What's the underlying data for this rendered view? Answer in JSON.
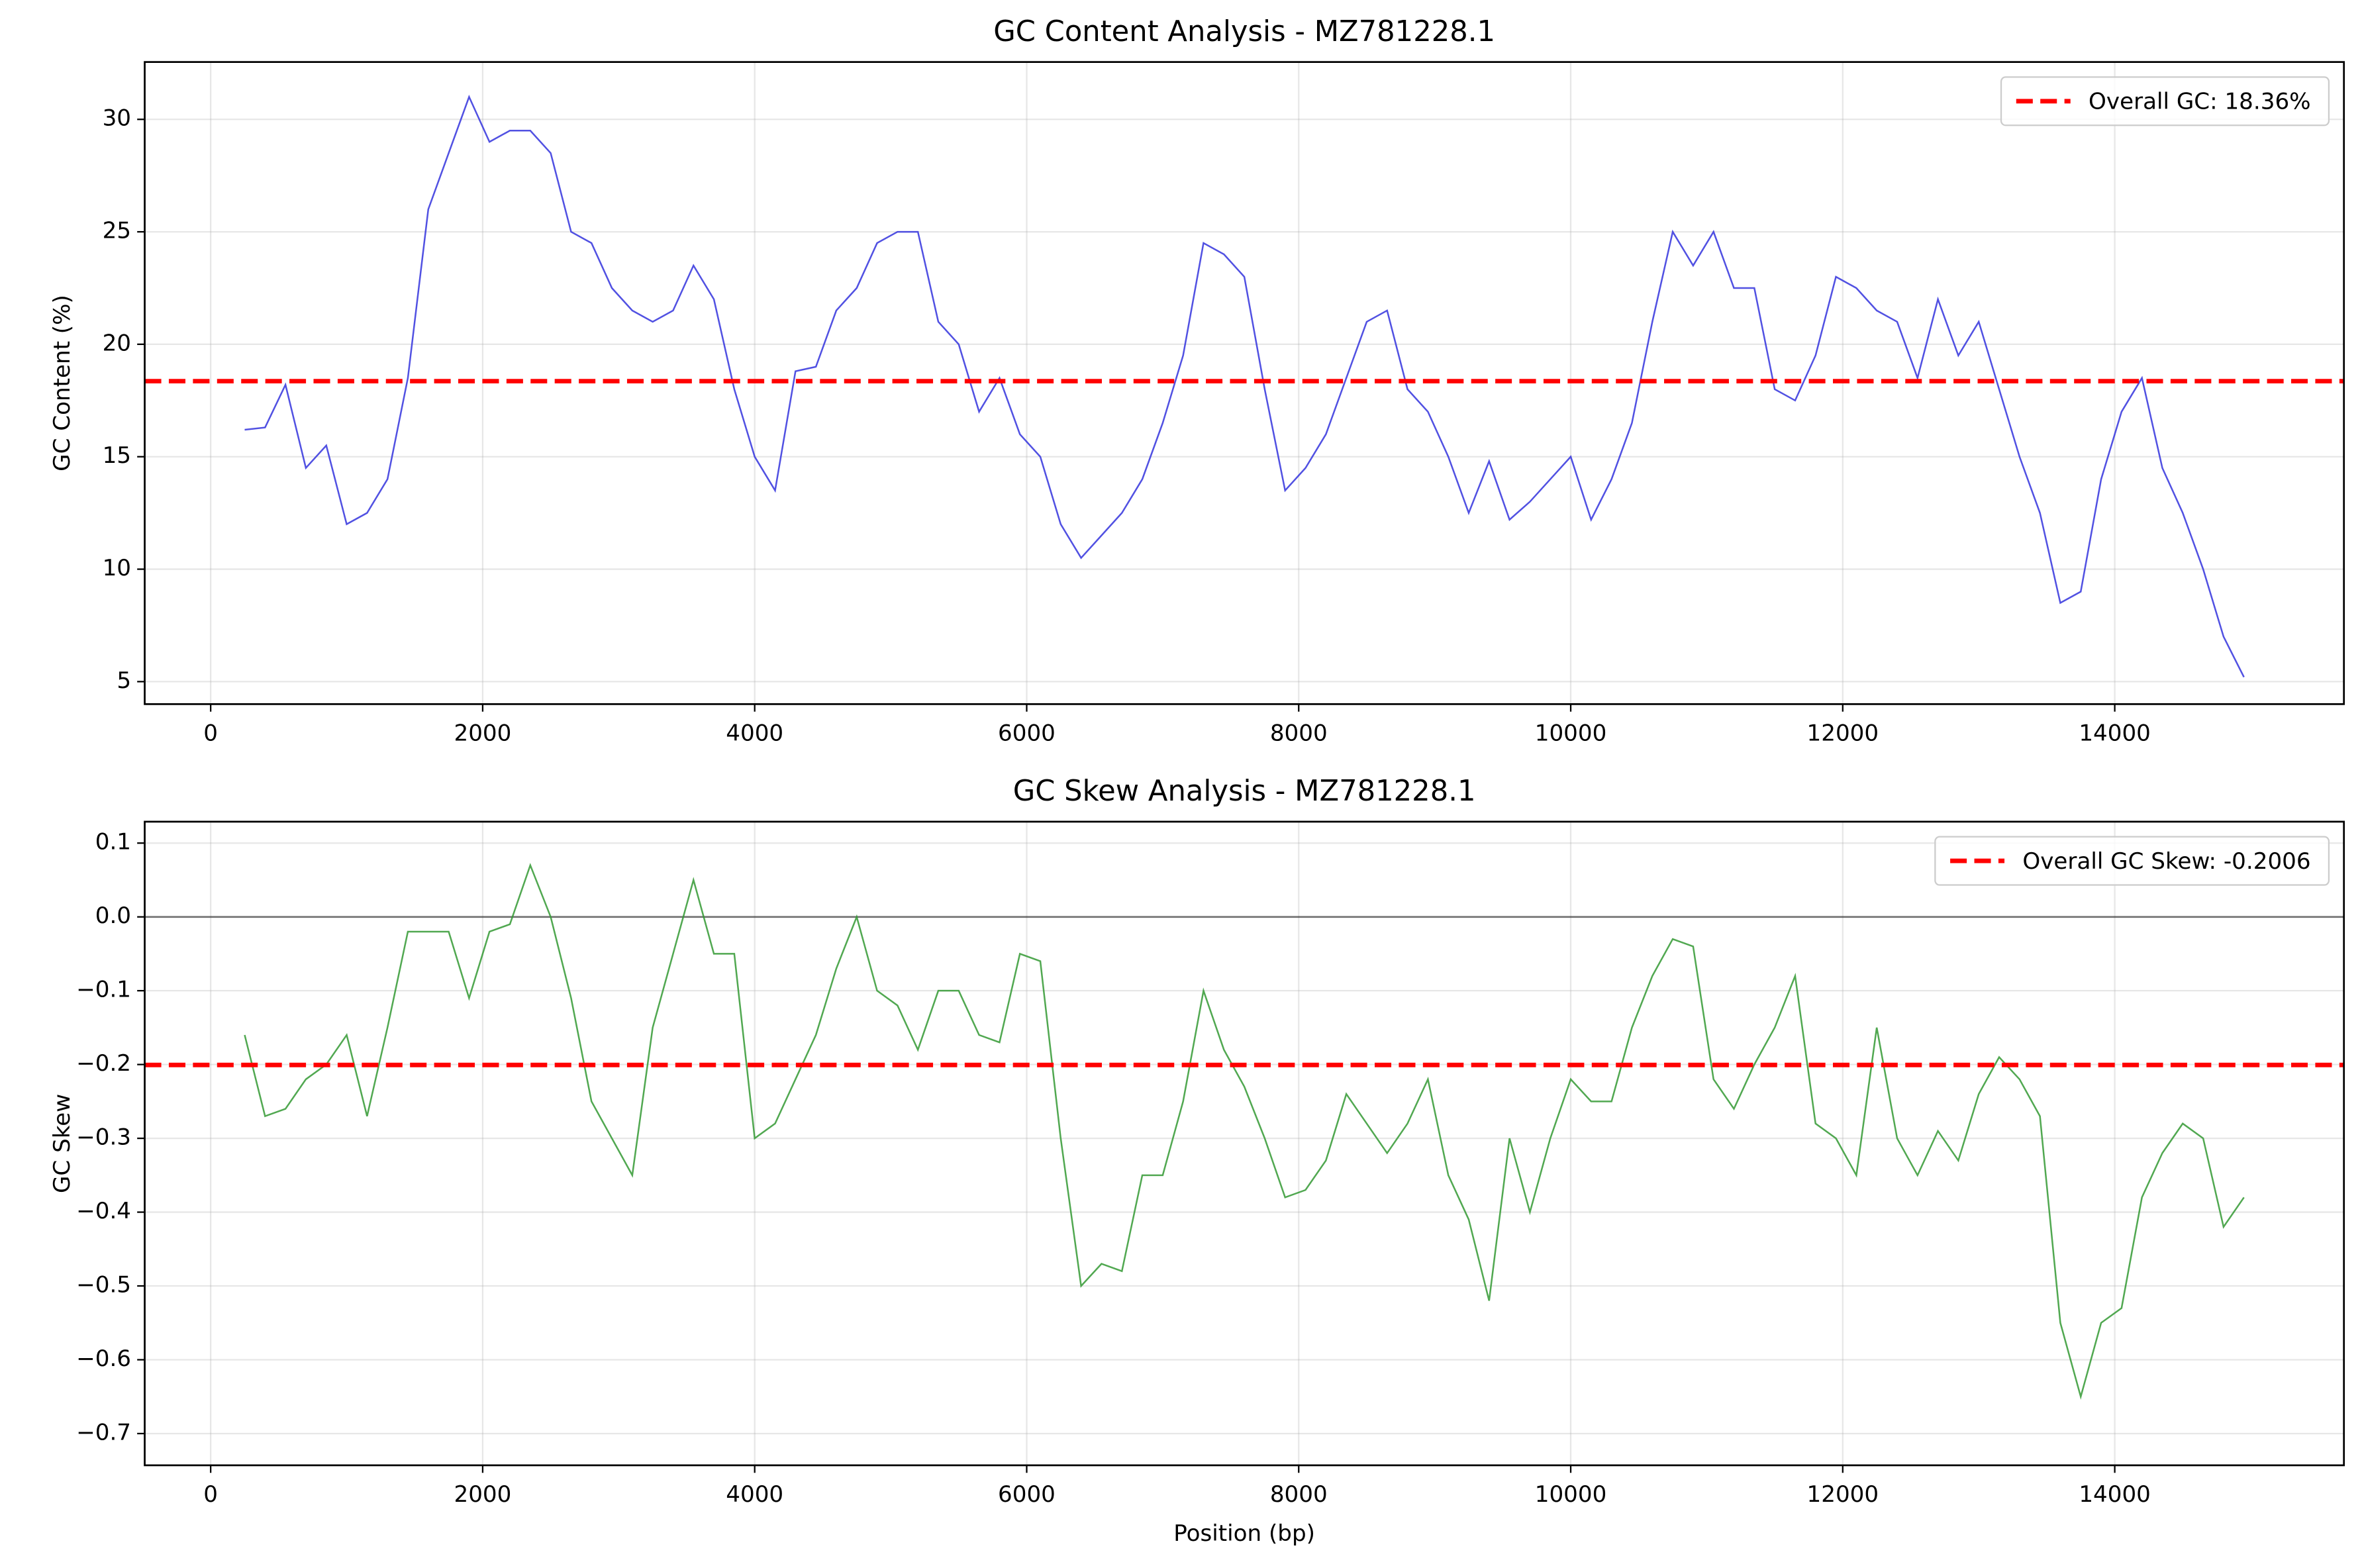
{
  "chart_data": [
    {
      "type": "line",
      "title": "GC Content Analysis - MZ781228.1",
      "ylabel": "GC Content (%)",
      "x": [
        250,
        400,
        550,
        700,
        850,
        1000,
        1150,
        1300,
        1450,
        1600,
        1750,
        1900,
        2050,
        2200,
        2350,
        2500,
        2650,
        2800,
        2950,
        3100,
        3250,
        3400,
        3550,
        3700,
        3850,
        4000,
        4150,
        4300,
        4450,
        4600,
        4750,
        4900,
        5050,
        5200,
        5350,
        5500,
        5650,
        5800,
        5950,
        6100,
        6250,
        6400,
        6550,
        6700,
        6850,
        7000,
        7150,
        7300,
        7450,
        7600,
        7750,
        7900,
        8050,
        8200,
        8350,
        8500,
        8650,
        8800,
        8950,
        9100,
        9250,
        9400,
        9550,
        9700,
        9850,
        10000,
        10150,
        10300,
        10450,
        10600,
        10750,
        10900,
        11050,
        11200,
        11350,
        11500,
        11650,
        11800,
        11950,
        12100,
        12250,
        12400,
        12550,
        12700,
        12850,
        13000,
        13150,
        13300,
        13450,
        13600,
        13750,
        13900,
        14050,
        14200,
        14350,
        14500,
        14650,
        14800,
        14950
      ],
      "values": [
        16.2,
        16.3,
        18.2,
        14.5,
        15.5,
        12,
        12.5,
        14,
        18.5,
        26,
        28.5,
        31,
        29,
        29.5,
        29.5,
        28.5,
        25,
        24.5,
        22.5,
        21.5,
        21,
        21.5,
        23.5,
        22,
        18,
        15,
        13.5,
        18.8,
        19,
        21.5,
        22.5,
        24.5,
        25,
        25,
        21,
        20,
        17,
        18.5,
        16,
        15,
        12,
        10.5,
        11.5,
        12.5,
        14,
        16.5,
        19.5,
        24.5,
        24,
        23,
        18,
        13.5,
        14.5,
        16,
        18.5,
        21,
        21.5,
        18,
        17,
        15,
        12.5,
        14.8,
        12.2,
        13,
        14,
        15,
        12.2,
        14,
        16.5,
        21,
        25,
        23.5,
        25,
        22.5,
        22.5,
        18,
        17.5,
        19.5,
        23,
        22.5,
        21.5,
        21,
        18.5,
        22,
        19.5,
        21,
        18,
        15,
        12.5,
        8.5,
        9,
        14,
        17,
        18.5,
        14.5,
        12.5,
        10,
        7,
        5.2
      ],
      "color": "#3333dd",
      "hline": {
        "value": 18.36,
        "label": "Overall GC: 18.36%",
        "color": "#ff0000"
      },
      "xlim": [
        -485,
        15685
      ],
      "xticks": [
        0,
        2000,
        4000,
        6000,
        8000,
        10000,
        12000,
        14000
      ],
      "ylim": [
        4.0,
        32.55
      ],
      "yticks": [
        5,
        10,
        15,
        20,
        25,
        30
      ],
      "grid": true,
      "legend": "upper right"
    },
    {
      "type": "line",
      "title": "GC Skew Analysis - MZ781228.1",
      "ylabel": "GC Skew",
      "xlabel": "Position (bp)",
      "x": [
        250,
        400,
        550,
        700,
        850,
        1000,
        1150,
        1300,
        1450,
        1600,
        1750,
        1900,
        2050,
        2200,
        2350,
        2500,
        2650,
        2800,
        2950,
        3100,
        3250,
        3400,
        3550,
        3700,
        3850,
        4000,
        4150,
        4300,
        4450,
        4600,
        4750,
        4900,
        5050,
        5200,
        5350,
        5500,
        5650,
        5800,
        5950,
        6100,
        6250,
        6400,
        6550,
        6700,
        6850,
        7000,
        7150,
        7300,
        7450,
        7600,
        7750,
        7900,
        8050,
        8200,
        8350,
        8500,
        8650,
        8800,
        8950,
        9100,
        9250,
        9400,
        9550,
        9700,
        9850,
        10000,
        10150,
        10300,
        10450,
        10600,
        10750,
        10900,
        11050,
        11200,
        11350,
        11500,
        11650,
        11800,
        11950,
        12100,
        12250,
        12400,
        12550,
        12700,
        12850,
        13000,
        13150,
        13300,
        13450,
        13600,
        13750,
        13900,
        14050,
        14200,
        14350,
        14500,
        14650,
        14800,
        14950
      ],
      "values": [
        -0.16,
        -0.27,
        -0.26,
        -0.22,
        -0.2,
        -0.16,
        -0.27,
        -0.15,
        -0.02,
        -0.02,
        -0.02,
        -0.11,
        -0.02,
        -0.01,
        0.07,
        0,
        -0.11,
        -0.25,
        -0.3,
        -0.35,
        -0.15,
        -0.05,
        0.05,
        -0.05,
        -0.05,
        -0.3,
        -0.28,
        -0.22,
        -0.16,
        -0.07,
        0,
        -0.1,
        -0.12,
        -0.18,
        -0.1,
        -0.1,
        -0.16,
        -0.17,
        -0.05,
        -0.06,
        -0.3,
        -0.5,
        -0.47,
        -0.48,
        -0.35,
        -0.35,
        -0.25,
        -0.1,
        -0.18,
        -0.23,
        -0.3,
        -0.38,
        -0.37,
        -0.33,
        -0.24,
        -0.28,
        -0.32,
        -0.28,
        -0.22,
        -0.35,
        -0.41,
        -0.52,
        -0.3,
        -0.4,
        -0.3,
        -0.22,
        -0.25,
        -0.25,
        -0.15,
        -0.08,
        -0.03,
        -0.04,
        -0.22,
        -0.26,
        -0.2,
        -0.15,
        -0.08,
        -0.28,
        -0.3,
        -0.35,
        -0.15,
        -0.3,
        -0.35,
        -0.29,
        -0.33,
        -0.24,
        -0.19,
        -0.22,
        -0.27,
        -0.55,
        -0.65,
        -0.55,
        -0.53,
        -0.38,
        -0.32,
        -0.28,
        -0.3,
        -0.42,
        -0.38
      ],
      "color": "#339933",
      "hline": {
        "value": -0.2006,
        "label": "Overall GC Skew: -0.2006",
        "color": "#ff0000"
      },
      "baseline": 0,
      "xlim": [
        -485,
        15685
      ],
      "xticks": [
        0,
        2000,
        4000,
        6000,
        8000,
        10000,
        12000,
        14000
      ],
      "ylim": [
        -0.743,
        0.129
      ],
      "yticks": [
        {
          "value": 0.1,
          "label": "0.1"
        },
        {
          "value": 0,
          "label": "0.0"
        },
        {
          "value": -0.1,
          "label": "−0.1"
        },
        {
          "value": -0.2,
          "label": "−0.2"
        },
        {
          "value": -0.3,
          "label": "−0.3"
        },
        {
          "value": -0.4,
          "label": "−0.4"
        },
        {
          "value": -0.5,
          "label": "−0.5"
        },
        {
          "value": -0.6,
          "label": "−0.6"
        },
        {
          "value": -0.7,
          "label": "−0.7"
        }
      ],
      "grid": true,
      "legend": "upper right"
    }
  ]
}
